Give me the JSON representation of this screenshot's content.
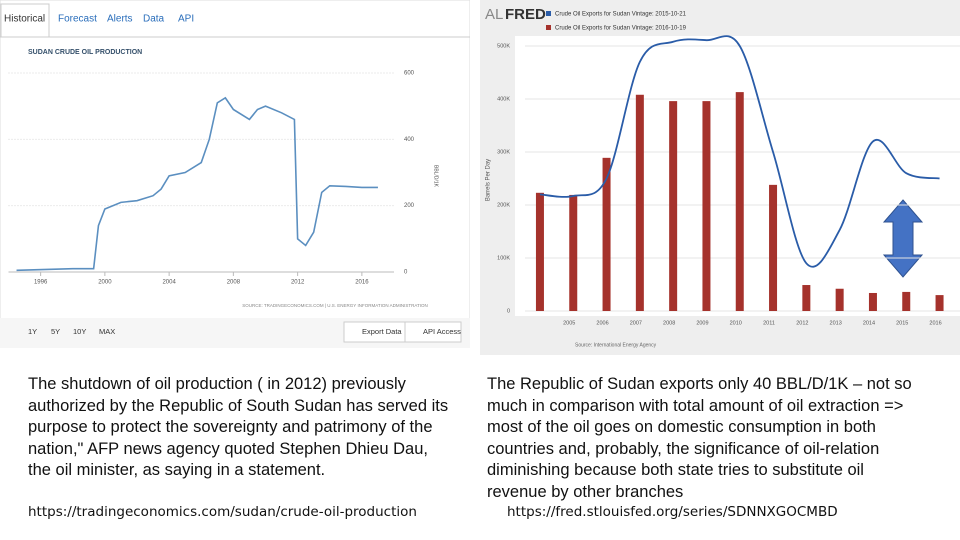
{
  "tabs": [
    "Historical",
    "Forecast",
    "Alerts",
    "Data",
    "API"
  ],
  "buttons": [
    "1Y",
    "5Y",
    "10Y",
    "MAX",
    "Export Data",
    "API Access"
  ],
  "chart_data": [
    {
      "type": "line",
      "title": "SUDAN CRUDE OIL PRODUCTION",
      "y_label": "BBL/D/1K",
      "source": "SOURCE: TRADINGECONOMICS.COM | U.S. ENERGY INFORMATION ADMINISTRATION",
      "color": "#5b8fc0",
      "x": [
        1994.5,
        1998,
        1999.3,
        1999.6,
        2000,
        2001,
        2002,
        2003,
        2003.5,
        2004,
        2005,
        2006,
        2006.5,
        2007,
        2007.5,
        2008,
        2009,
        2009.5,
        2010,
        2011,
        2011.8,
        2012,
        2012.5,
        2013,
        2013.5,
        2014,
        2015,
        2016,
        2017
      ],
      "values": [
        5,
        10,
        10,
        140,
        190,
        210,
        215,
        230,
        250,
        290,
        300,
        330,
        400,
        510,
        525,
        490,
        460,
        490,
        500,
        480,
        460,
        100,
        80,
        120,
        240,
        260,
        258,
        255,
        255
      ],
      "xlim": [
        1994,
        2018
      ],
      "xticks": [
        1996,
        2000,
        2004,
        2008,
        2012,
        2016
      ],
      "ylim": [
        0,
        600
      ],
      "yticks": [
        0,
        200,
        400,
        600
      ],
      "grid": true
    },
    {
      "type": "bar",
      "logo": [
        "AL",
        "FRED"
      ],
      "y_label": "Barrels Per Day",
      "source": "Source: International Energy Agency",
      "categories": [
        null,
        "2005",
        "2006",
        "2007",
        "2008",
        "2009",
        "2010",
        "2011",
        "2012",
        "2013",
        "2014",
        "2015",
        "2016"
      ],
      "series": [
        {
          "name": "Crude Oil Exports for Sudan Vintage: 2015-10-21",
          "color": "#2a5ca8",
          "type": "line",
          "values": [
            220000,
            217000,
            250000,
            470000,
            508000,
            511000,
            500000,
            300000,
            90000,
            153000,
            320000,
            260000,
            250000
          ]
        },
        {
          "name": "Crude Oil Exports for Sudan Vintage: 2016-10-19",
          "color": "#a5322c",
          "type": "bar",
          "values": [
            223000,
            219000,
            289000,
            408000,
            396000,
            396000,
            413000,
            238000,
            49000,
            42000,
            34000,
            36000,
            30000
          ]
        }
      ],
      "ylim": [
        0,
        500000
      ],
      "yticks": [
        0,
        {
          "value": 100000,
          "label": "100K"
        },
        {
          "value": 200000,
          "label": "200K"
        },
        {
          "value": 300000,
          "label": "300K"
        },
        {
          "value": 400000,
          "label": "400K"
        },
        {
          "value": 500000,
          "label": "500K"
        }
      ],
      "grid": true
    }
  ],
  "text": {
    "left": [
      "The shutdown of oil production ( in 2012) previously",
      "authorized by the Republic of South Sudan has served its",
      "purpose to protect the sovereignty and patrimony of the",
      "nation,\" AFP news agency quoted Stephen Dhieu Dau,",
      "the oil minister, as saying in a statement."
    ],
    "right": [
      "The Republic of Sudan exports only 40 BBL/D/1K – not so",
      "much in comparison with total amount of oil extraction =>",
      "most of the oil goes on domestic consumption in both",
      "countries and, probably, the significance of oil-relation",
      "diminishing because both state tries to substitute oil",
      "revenue by other branches"
    ],
    "left_url": "https://tradingeconomics.com/sudan/crude-oil-production",
    "right_url": "https://fred.stlouisfed.org/series/SDNNXGOCMBD"
  }
}
